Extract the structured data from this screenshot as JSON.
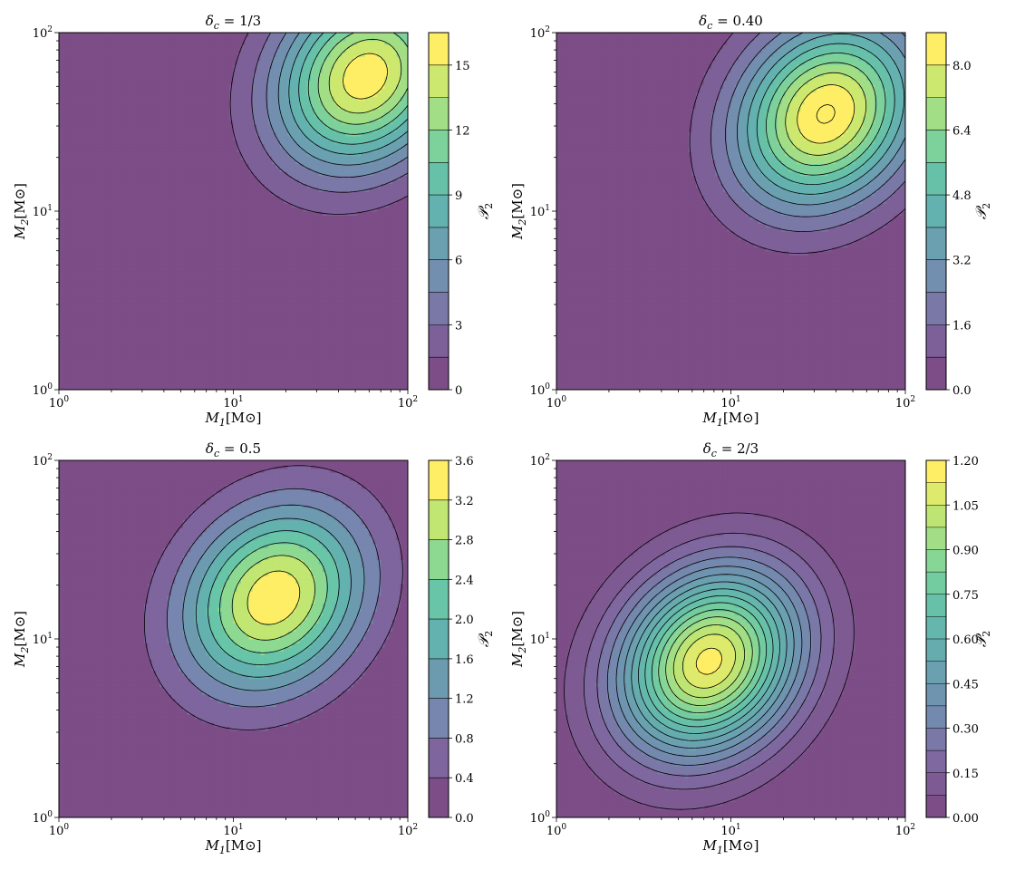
{
  "chart_data": [
    {
      "type": "contour",
      "title": "δ_c = 1/3",
      "title_parts": {
        "sym": "δ",
        "sub": "c",
        "rest": " = 1/3"
      },
      "xlabel": {
        "sym": "M",
        "sub": "1",
        "rest": "[M⊙]"
      },
      "ylabel": {
        "sym": "M",
        "sub": "2",
        "rest": "[M⊙]"
      },
      "x_scale": "log",
      "y_scale": "log",
      "xlim": [
        1,
        100
      ],
      "ylim": [
        1,
        100
      ],
      "xticks": [
        {
          "base": "10",
          "exp": "0"
        },
        {
          "base": "10",
          "exp": "1"
        },
        {
          "base": "10",
          "exp": "2"
        }
      ],
      "yticks": [
        {
          "base": "10",
          "exp": "0"
        },
        {
          "base": "10",
          "exp": "1"
        },
        {
          "base": "10",
          "exp": "2"
        }
      ],
      "peak": {
        "M1": 57,
        "M2": 57
      },
      "peak_value": 16.0,
      "levels": [
        0,
        1.5,
        3,
        4.5,
        6,
        7.5,
        9,
        10.5,
        12,
        13.5,
        15,
        16.5
      ],
      "colorbar": {
        "label": "𝒫",
        "label_sub": "2",
        "ticks": [
          "0",
          "3",
          "6",
          "9",
          "12",
          "15"
        ],
        "tick_values": [
          0,
          3,
          6,
          9,
          12,
          15
        ],
        "range": [
          0,
          16.5
        ]
      }
    },
    {
      "type": "contour",
      "title": "δ_c = 0.40",
      "title_parts": {
        "sym": "δ",
        "sub": "c",
        "rest": " = 0.40"
      },
      "xlabel": {
        "sym": "M",
        "sub": "1",
        "rest": "[M⊙]"
      },
      "ylabel": {
        "sym": "M",
        "sub": "2",
        "rest": "[M⊙]"
      },
      "x_scale": "log",
      "y_scale": "log",
      "xlim": [
        1,
        100
      ],
      "ylim": [
        1,
        100
      ],
      "xticks": [
        {
          "base": "10",
          "exp": "0"
        },
        {
          "base": "10",
          "exp": "1"
        },
        {
          "base": "10",
          "exp": "2"
        }
      ],
      "yticks": [
        {
          "base": "10",
          "exp": "0"
        },
        {
          "base": "10",
          "exp": "1"
        },
        {
          "base": "10",
          "exp": "2"
        }
      ],
      "peak": {
        "M1": 35,
        "M2": 35
      },
      "peak_value": 8.9,
      "levels": [
        0,
        0.8,
        1.6,
        2.4,
        3.2,
        4.0,
        4.8,
        5.6,
        6.4,
        7.2,
        8.0,
        8.8
      ],
      "colorbar": {
        "label": "𝒫",
        "label_sub": "2",
        "ticks": [
          "0.0",
          "1.6",
          "3.2",
          "4.8",
          "6.4",
          "8.0"
        ],
        "tick_values": [
          0,
          1.6,
          3.2,
          4.8,
          6.4,
          8.0
        ],
        "range": [
          0,
          8.8
        ]
      }
    },
    {
      "type": "contour",
      "title": "δ_c = 0.5",
      "title_parts": {
        "sym": "δ",
        "sub": "c",
        "rest": " = 0.5"
      },
      "xlabel": {
        "sym": "M",
        "sub": "1",
        "rest": "[M⊙]"
      },
      "ylabel": {
        "sym": "M",
        "sub": "2",
        "rest": "[M⊙]"
      },
      "x_scale": "log",
      "y_scale": "log",
      "xlim": [
        1,
        100
      ],
      "ylim": [
        1,
        100
      ],
      "xticks": [
        {
          "base": "10",
          "exp": "0"
        },
        {
          "base": "10",
          "exp": "1"
        },
        {
          "base": "10",
          "exp": "2"
        }
      ],
      "yticks": [
        {
          "base": "10",
          "exp": "0"
        },
        {
          "base": "10",
          "exp": "1"
        },
        {
          "base": "10",
          "exp": "2"
        }
      ],
      "peak": {
        "M1": 17,
        "M2": 17
      },
      "peak_value": 3.5,
      "levels": [
        0,
        0.4,
        0.8,
        1.2,
        1.6,
        2.0,
        2.4,
        2.8,
        3.2,
        3.6
      ],
      "colorbar": {
        "label": "𝒫",
        "label_sub": "2",
        "ticks": [
          "0.0",
          "0.4",
          "0.8",
          "1.2",
          "1.6",
          "2.0",
          "2.4",
          "2.8",
          "3.2",
          "3.6"
        ],
        "tick_values": [
          0,
          0.4,
          0.8,
          1.2,
          1.6,
          2.0,
          2.4,
          2.8,
          3.2,
          3.6
        ],
        "range": [
          0,
          3.6
        ]
      }
    },
    {
      "type": "contour",
      "title": "δ_c = 2/3",
      "title_parts": {
        "sym": "δ",
        "sub": "c",
        "rest": " = 2/3"
      },
      "xlabel": {
        "sym": "M",
        "sub": "1",
        "rest": "[M⊙]"
      },
      "ylabel": {
        "sym": "M",
        "sub": "2",
        "rest": "[M⊙]"
      },
      "x_scale": "log",
      "y_scale": "log",
      "xlim": [
        1,
        100
      ],
      "ylim": [
        1,
        100
      ],
      "xticks": [
        {
          "base": "10",
          "exp": "0"
        },
        {
          "base": "10",
          "exp": "1"
        },
        {
          "base": "10",
          "exp": "2"
        }
      ],
      "yticks": [
        {
          "base": "10",
          "exp": "0"
        },
        {
          "base": "10",
          "exp": "1"
        },
        {
          "base": "10",
          "exp": "2"
        }
      ],
      "peak": {
        "M1": 7.5,
        "M2": 7.5
      },
      "peak_value": 1.15,
      "levels": [
        0,
        0.075,
        0.15,
        0.225,
        0.3,
        0.375,
        0.45,
        0.525,
        0.6,
        0.675,
        0.75,
        0.825,
        0.9,
        0.975,
        1.05,
        1.125,
        1.2
      ],
      "colorbar": {
        "label": "𝒫",
        "label_sub": "2",
        "ticks": [
          "0.00",
          "0.15",
          "0.30",
          "0.45",
          "0.60",
          "0.75",
          "0.90",
          "1.05",
          "1.20"
        ],
        "tick_values": [
          0,
          0.15,
          0.3,
          0.45,
          0.6,
          0.75,
          0.9,
          1.05,
          1.2
        ],
        "range": [
          0,
          1.2
        ]
      }
    }
  ]
}
